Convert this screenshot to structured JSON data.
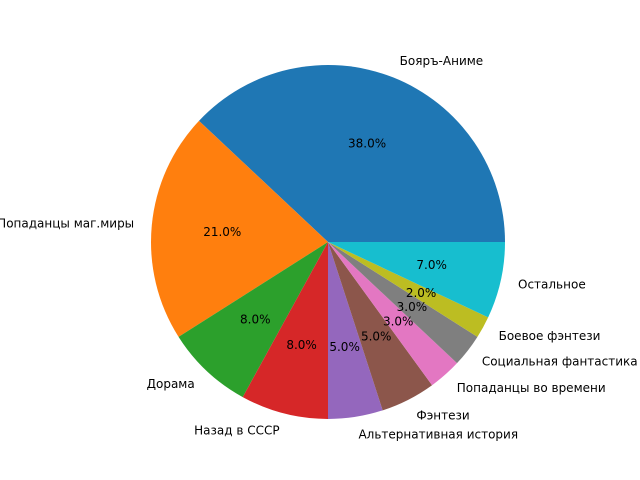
{
  "chart_data": {
    "type": "pie",
    "title": "",
    "start_angle_deg": 0,
    "direction": "counterclockwise",
    "label_format": "{pct}%",
    "slices": [
      {
        "label": "Бояръ-Аниме",
        "value": 38.0,
        "color": "#1f77b4"
      },
      {
        "label": "Попаданцы маг.миры",
        "value": 21.0,
        "color": "#ff7f0e"
      },
      {
        "label": "Дорама",
        "value": 8.0,
        "color": "#2ca02c"
      },
      {
        "label": "Назад в СССР",
        "value": 8.0,
        "color": "#d62728"
      },
      {
        "label": "Альтернативная история",
        "value": 5.0,
        "color": "#9467bd"
      },
      {
        "label": "Фэнтези",
        "value": 5.0,
        "color": "#8c564b"
      },
      {
        "label": "Попаданцы во времени",
        "value": 3.0,
        "color": "#e377c2"
      },
      {
        "label": "Социальная фантастика",
        "value": 3.0,
        "color": "#7f7f7f"
      },
      {
        "label": "Боевое фэнтези",
        "value": 2.0,
        "color": "#bcbd22"
      },
      {
        "label": "Остальное",
        "value": 7.0,
        "color": "#17becf"
      }
    ]
  }
}
